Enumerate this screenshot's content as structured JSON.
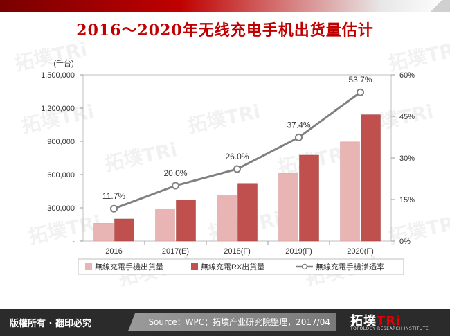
{
  "title": "2016～2020年无线充电手机出货量估计",
  "unit_label": "(千台)",
  "footer": {
    "rights": "版權所有 · 翻印必究",
    "source": "Source：WPC；拓墣产业研究院整理，2017/04",
    "logo_text": "拓墣",
    "logo_accent": "TRi",
    "logo_sub": "TOPOLOGY RESEARCH INSTITUTE"
  },
  "watermark": "拓墣TRi",
  "colors": {
    "title": "#c00000",
    "bar_total": "#e8b4b4",
    "bar_rx": "#c0504d",
    "line": "#808080"
  },
  "chart_data": {
    "type": "bar",
    "title": "2016～2020年无线充电手机出货量估计",
    "categories": [
      "2016",
      "2017(E)",
      "2018(F)",
      "2019(F)",
      "2020(F)"
    ],
    "series": [
      {
        "name": "無線充電手機出貨量",
        "type": "bar",
        "axis": "left",
        "values": [
          160000,
          290000,
          415000,
          610000,
          895000
        ]
      },
      {
        "name": "無線充電RX出貨量",
        "type": "bar",
        "axis": "left",
        "values": [
          200000,
          370000,
          520000,
          775000,
          1140000
        ]
      },
      {
        "name": "無線充電手機滲透率",
        "type": "line",
        "axis": "right",
        "values": [
          11.7,
          20.0,
          26.0,
          37.4,
          53.7
        ],
        "labels": [
          "11.7%",
          "20.0%",
          "26.0%",
          "37.4%",
          "53.7%"
        ]
      }
    ],
    "y_left": {
      "min": 0,
      "max": 1500000,
      "ticks": [
        "-",
        "300,000",
        "600,000",
        "900,000",
        "1,200,000",
        "1,500,000"
      ]
    },
    "y_right": {
      "min": 0,
      "max": 60,
      "ticks": [
        "0%",
        "15%",
        "30%",
        "45%",
        "60%"
      ]
    },
    "grid": false,
    "legend": "bottom"
  }
}
